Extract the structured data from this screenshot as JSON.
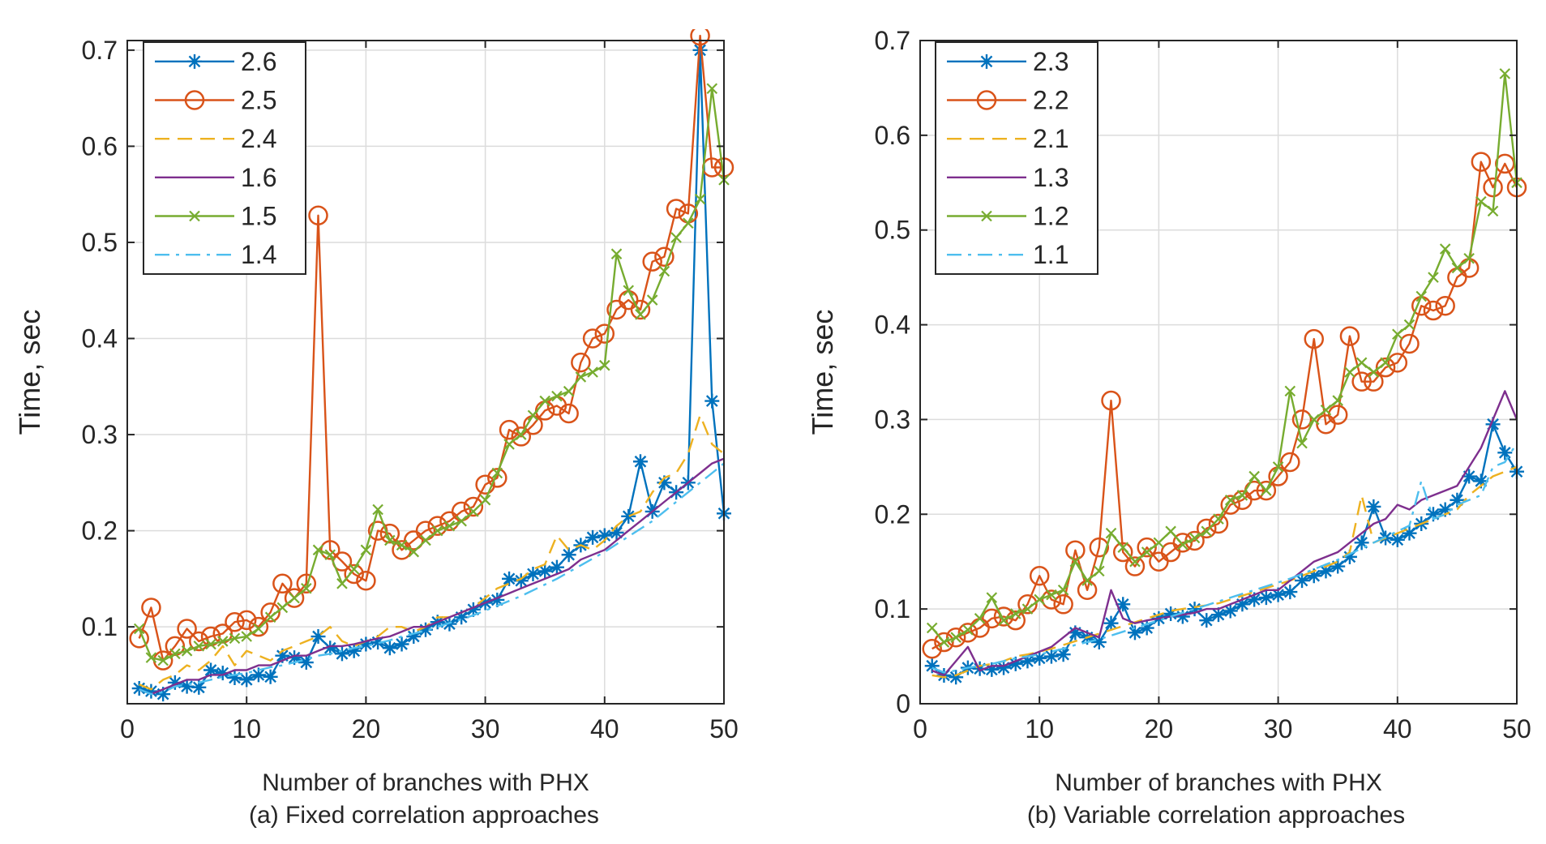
{
  "chart_data": [
    {
      "type": "line",
      "panel": "a",
      "title": "",
      "caption": "(a) Fixed correlation approaches",
      "xlabel": "Number of branches with PHX",
      "ylabel": "Time, sec",
      "xlim": [
        0,
        50
      ],
      "ylim": [
        0.02,
        0.71
      ],
      "xticks": [
        0,
        10,
        20,
        30,
        40,
        50
      ],
      "yticks": [
        0.1,
        0.2,
        0.3,
        0.4,
        0.5,
        0.6,
        0.7
      ],
      "ytick_labels": [
        "0.1",
        "0.2",
        "0.3",
        "0.4",
        "0.5",
        "0.6",
        "0.7"
      ],
      "grid": true,
      "legend_position": "top-left",
      "x": [
        1,
        2,
        3,
        4,
        5,
        6,
        7,
        8,
        9,
        10,
        11,
        12,
        13,
        14,
        15,
        16,
        17,
        18,
        19,
        20,
        21,
        22,
        23,
        24,
        25,
        26,
        27,
        28,
        29,
        30,
        31,
        32,
        33,
        34,
        35,
        36,
        37,
        38,
        39,
        40,
        41,
        42,
        43,
        44,
        45,
        46,
        47,
        48,
        49,
        50
      ],
      "series": [
        {
          "name": "2.6",
          "color": "#0072BD",
          "marker": "asterisk",
          "dash": "solid",
          "values": [
            0.036,
            0.033,
            0.03,
            0.042,
            0.038,
            0.037,
            0.055,
            0.052,
            0.047,
            0.045,
            0.05,
            0.048,
            0.07,
            0.068,
            0.063,
            0.09,
            0.078,
            0.072,
            0.075,
            0.082,
            0.084,
            0.078,
            0.082,
            0.09,
            0.097,
            0.105,
            0.103,
            0.11,
            0.118,
            0.125,
            0.128,
            0.15,
            0.148,
            0.155,
            0.158,
            0.162,
            0.175,
            0.185,
            0.193,
            0.195,
            0.198,
            0.215,
            0.272,
            0.22,
            0.25,
            0.24,
            0.25,
            0.7,
            0.335,
            0.218
          ]
        },
        {
          "name": "2.5",
          "color": "#D95319",
          "marker": "circle",
          "dash": "solid",
          "values": [
            0.088,
            0.12,
            0.065,
            0.08,
            0.098,
            0.085,
            0.09,
            0.093,
            0.105,
            0.107,
            0.1,
            0.115,
            0.145,
            0.13,
            0.145,
            0.528,
            0.18,
            0.168,
            0.155,
            0.148,
            0.2,
            0.197,
            0.18,
            0.19,
            0.2,
            0.205,
            0.21,
            0.22,
            0.225,
            0.248,
            0.255,
            0.305,
            0.298,
            0.31,
            0.325,
            0.33,
            0.322,
            0.375,
            0.4,
            0.405,
            0.43,
            0.44,
            0.43,
            0.48,
            0.485,
            0.535,
            0.53,
            0.715,
            0.578,
            0.578
          ]
        },
        {
          "name": "2.4",
          "color": "#EDB120",
          "marker": "none",
          "dash": "dashed",
          "values": [
            0.04,
            0.035,
            0.045,
            0.05,
            0.06,
            0.055,
            0.065,
            0.08,
            0.06,
            0.075,
            0.07,
            0.065,
            0.075,
            0.08,
            0.085,
            0.09,
            0.1,
            0.085,
            0.08,
            0.085,
            0.09,
            0.1,
            0.1,
            0.095,
            0.1,
            0.11,
            0.11,
            0.115,
            0.12,
            0.13,
            0.14,
            0.145,
            0.15,
            0.16,
            0.165,
            0.195,
            0.18,
            0.185,
            0.18,
            0.19,
            0.205,
            0.215,
            0.22,
            0.24,
            0.255,
            0.26,
            0.28,
            0.32,
            0.29,
            0.28
          ]
        },
        {
          "name": "1.6",
          "color": "#7E2F8E",
          "marker": "none",
          "dash": "solid",
          "values": [
            0.035,
            0.03,
            0.035,
            0.04,
            0.045,
            0.045,
            0.05,
            0.05,
            0.055,
            0.055,
            0.06,
            0.06,
            0.065,
            0.07,
            0.07,
            0.075,
            0.08,
            0.08,
            0.082,
            0.085,
            0.088,
            0.09,
            0.095,
            0.1,
            0.1,
            0.105,
            0.11,
            0.115,
            0.12,
            0.125,
            0.13,
            0.135,
            0.14,
            0.145,
            0.15,
            0.155,
            0.16,
            0.17,
            0.175,
            0.18,
            0.19,
            0.2,
            0.21,
            0.22,
            0.23,
            0.24,
            0.25,
            0.26,
            0.27,
            0.275
          ]
        },
        {
          "name": "1.5",
          "color": "#77AC30",
          "marker": "cross",
          "dash": "solid",
          "values": [
            0.098,
            0.068,
            0.065,
            0.072,
            0.075,
            0.08,
            0.082,
            0.085,
            0.088,
            0.09,
            0.098,
            0.11,
            0.12,
            0.13,
            0.14,
            0.18,
            0.175,
            0.145,
            0.16,
            0.18,
            0.222,
            0.19,
            0.185,
            0.178,
            0.19,
            0.2,
            0.205,
            0.21,
            0.22,
            0.232,
            0.26,
            0.29,
            0.3,
            0.32,
            0.335,
            0.34,
            0.345,
            0.36,
            0.365,
            0.372,
            0.488,
            0.45,
            0.425,
            0.44,
            0.47,
            0.505,
            0.52,
            0.545,
            0.66,
            0.565
          ]
        },
        {
          "name": "1.4",
          "color": "#4DBEEE",
          "marker": "none",
          "dash": "dashdot",
          "values": [
            0.035,
            0.03,
            0.032,
            0.038,
            0.04,
            0.042,
            0.045,
            0.048,
            0.05,
            0.052,
            0.055,
            0.058,
            0.06,
            0.063,
            0.066,
            0.07,
            0.072,
            0.075,
            0.078,
            0.08,
            0.083,
            0.086,
            0.09,
            0.093,
            0.096,
            0.1,
            0.104,
            0.108,
            0.112,
            0.117,
            0.122,
            0.127,
            0.132,
            0.138,
            0.144,
            0.15,
            0.157,
            0.164,
            0.171,
            0.178,
            0.186,
            0.194,
            0.202,
            0.21,
            0.22,
            0.23,
            0.24,
            0.25,
            0.26,
            0.27
          ]
        }
      ]
    },
    {
      "type": "line",
      "panel": "b",
      "title": "",
      "caption": "(b) Variable correlation approaches",
      "xlabel": "Number of branches with PHX",
      "ylabel": "Time, sec",
      "xlim": [
        0,
        50
      ],
      "ylim": [
        0,
        0.7
      ],
      "xticks": [
        0,
        10,
        20,
        30,
        40,
        50
      ],
      "yticks": [
        0,
        0.1,
        0.2,
        0.3,
        0.4,
        0.5,
        0.6,
        0.7
      ],
      "ytick_labels": [
        "0",
        "0.1",
        "0.2",
        "0.3",
        "0.4",
        "0.5",
        "0.6",
        "0.7"
      ],
      "grid": true,
      "legend_position": "top-left",
      "x": [
        1,
        2,
        3,
        4,
        5,
        6,
        7,
        8,
        9,
        10,
        11,
        12,
        13,
        14,
        15,
        16,
        17,
        18,
        19,
        20,
        21,
        22,
        23,
        24,
        25,
        26,
        27,
        28,
        29,
        30,
        31,
        32,
        33,
        34,
        35,
        36,
        37,
        38,
        39,
        40,
        41,
        42,
        43,
        44,
        45,
        46,
        47,
        48,
        49,
        50
      ],
      "series": [
        {
          "name": "2.3",
          "color": "#0072BD",
          "marker": "asterisk",
          "dash": "solid",
          "values": [
            0.04,
            0.03,
            0.028,
            0.038,
            0.037,
            0.036,
            0.038,
            0.042,
            0.045,
            0.048,
            0.05,
            0.052,
            0.075,
            0.07,
            0.065,
            0.085,
            0.105,
            0.075,
            0.08,
            0.09,
            0.095,
            0.092,
            0.1,
            0.088,
            0.094,
            0.098,
            0.105,
            0.11,
            0.112,
            0.115,
            0.118,
            0.13,
            0.135,
            0.14,
            0.145,
            0.155,
            0.17,
            0.208,
            0.175,
            0.173,
            0.18,
            0.19,
            0.2,
            0.205,
            0.215,
            0.24,
            0.235,
            0.295,
            0.265,
            0.245
          ]
        },
        {
          "name": "2.2",
          "color": "#D95319",
          "marker": "circle",
          "dash": "solid",
          "values": [
            0.058,
            0.065,
            0.07,
            0.075,
            0.08,
            0.09,
            0.092,
            0.088,
            0.105,
            0.135,
            0.11,
            0.105,
            0.162,
            0.12,
            0.165,
            0.32,
            0.16,
            0.145,
            0.165,
            0.15,
            0.16,
            0.17,
            0.172,
            0.185,
            0.19,
            0.21,
            0.215,
            0.225,
            0.225,
            0.24,
            0.255,
            0.3,
            0.385,
            0.295,
            0.305,
            0.388,
            0.34,
            0.34,
            0.355,
            0.36,
            0.38,
            0.42,
            0.415,
            0.42,
            0.45,
            0.46,
            0.572,
            0.545,
            0.57,
            0.545
          ]
        },
        {
          "name": "2.1",
          "color": "#EDB120",
          "marker": "none",
          "dash": "dashed",
          "values": [
            0.03,
            0.028,
            0.03,
            0.035,
            0.04,
            0.042,
            0.045,
            0.05,
            0.052,
            0.055,
            0.058,
            0.062,
            0.066,
            0.07,
            0.074,
            0.078,
            0.082,
            0.086,
            0.09,
            0.094,
            0.098,
            0.1,
            0.102,
            0.104,
            0.106,
            0.11,
            0.114,
            0.118,
            0.122,
            0.126,
            0.13,
            0.135,
            0.14,
            0.145,
            0.15,
            0.16,
            0.22,
            0.17,
            0.175,
            0.18,
            0.185,
            0.19,
            0.195,
            0.2,
            0.205,
            0.22,
            0.23,
            0.24,
            0.245,
            0.25
          ]
        },
        {
          "name": "1.3",
          "color": "#7E2F8E",
          "marker": "none",
          "dash": "solid",
          "values": [
            0.035,
            0.03,
            0.045,
            0.06,
            0.035,
            0.04,
            0.04,
            0.045,
            0.05,
            0.055,
            0.06,
            0.07,
            0.08,
            0.075,
            0.07,
            0.12,
            0.09,
            0.085,
            0.088,
            0.09,
            0.092,
            0.094,
            0.096,
            0.1,
            0.1,
            0.105,
            0.11,
            0.115,
            0.12,
            0.12,
            0.13,
            0.14,
            0.15,
            0.155,
            0.16,
            0.17,
            0.18,
            0.19,
            0.195,
            0.21,
            0.205,
            0.215,
            0.22,
            0.225,
            0.23,
            0.25,
            0.27,
            0.3,
            0.33,
            0.3
          ]
        },
        {
          "name": "1.2",
          "color": "#77AC30",
          "marker": "cross",
          "dash": "solid",
          "values": [
            0.08,
            0.065,
            0.07,
            0.078,
            0.09,
            0.112,
            0.088,
            0.095,
            0.1,
            0.11,
            0.115,
            0.12,
            0.15,
            0.13,
            0.14,
            0.18,
            0.165,
            0.15,
            0.16,
            0.17,
            0.182,
            0.168,
            0.175,
            0.182,
            0.195,
            0.215,
            0.22,
            0.24,
            0.225,
            0.25,
            0.33,
            0.275,
            0.3,
            0.31,
            0.32,
            0.35,
            0.36,
            0.35,
            0.36,
            0.39,
            0.4,
            0.43,
            0.45,
            0.48,
            0.46,
            0.47,
            0.53,
            0.52,
            0.665,
            0.55
          ]
        },
        {
          "name": "1.1",
          "color": "#4DBEEE",
          "marker": "none",
          "dash": "dashdot",
          "values": [
            0.038,
            0.033,
            0.035,
            0.038,
            0.04,
            0.042,
            0.045,
            0.048,
            0.05,
            0.052,
            0.055,
            0.058,
            0.062,
            0.065,
            0.068,
            0.072,
            0.076,
            0.08,
            0.084,
            0.088,
            0.092,
            0.096,
            0.1,
            0.104,
            0.108,
            0.112,
            0.116,
            0.12,
            0.124,
            0.128,
            0.132,
            0.137,
            0.142,
            0.147,
            0.152,
            0.158,
            0.164,
            0.17,
            0.176,
            0.182,
            0.188,
            0.235,
            0.195,
            0.2,
            0.21,
            0.215,
            0.22,
            0.25,
            0.255,
            0.275
          ]
        }
      ]
    }
  ]
}
